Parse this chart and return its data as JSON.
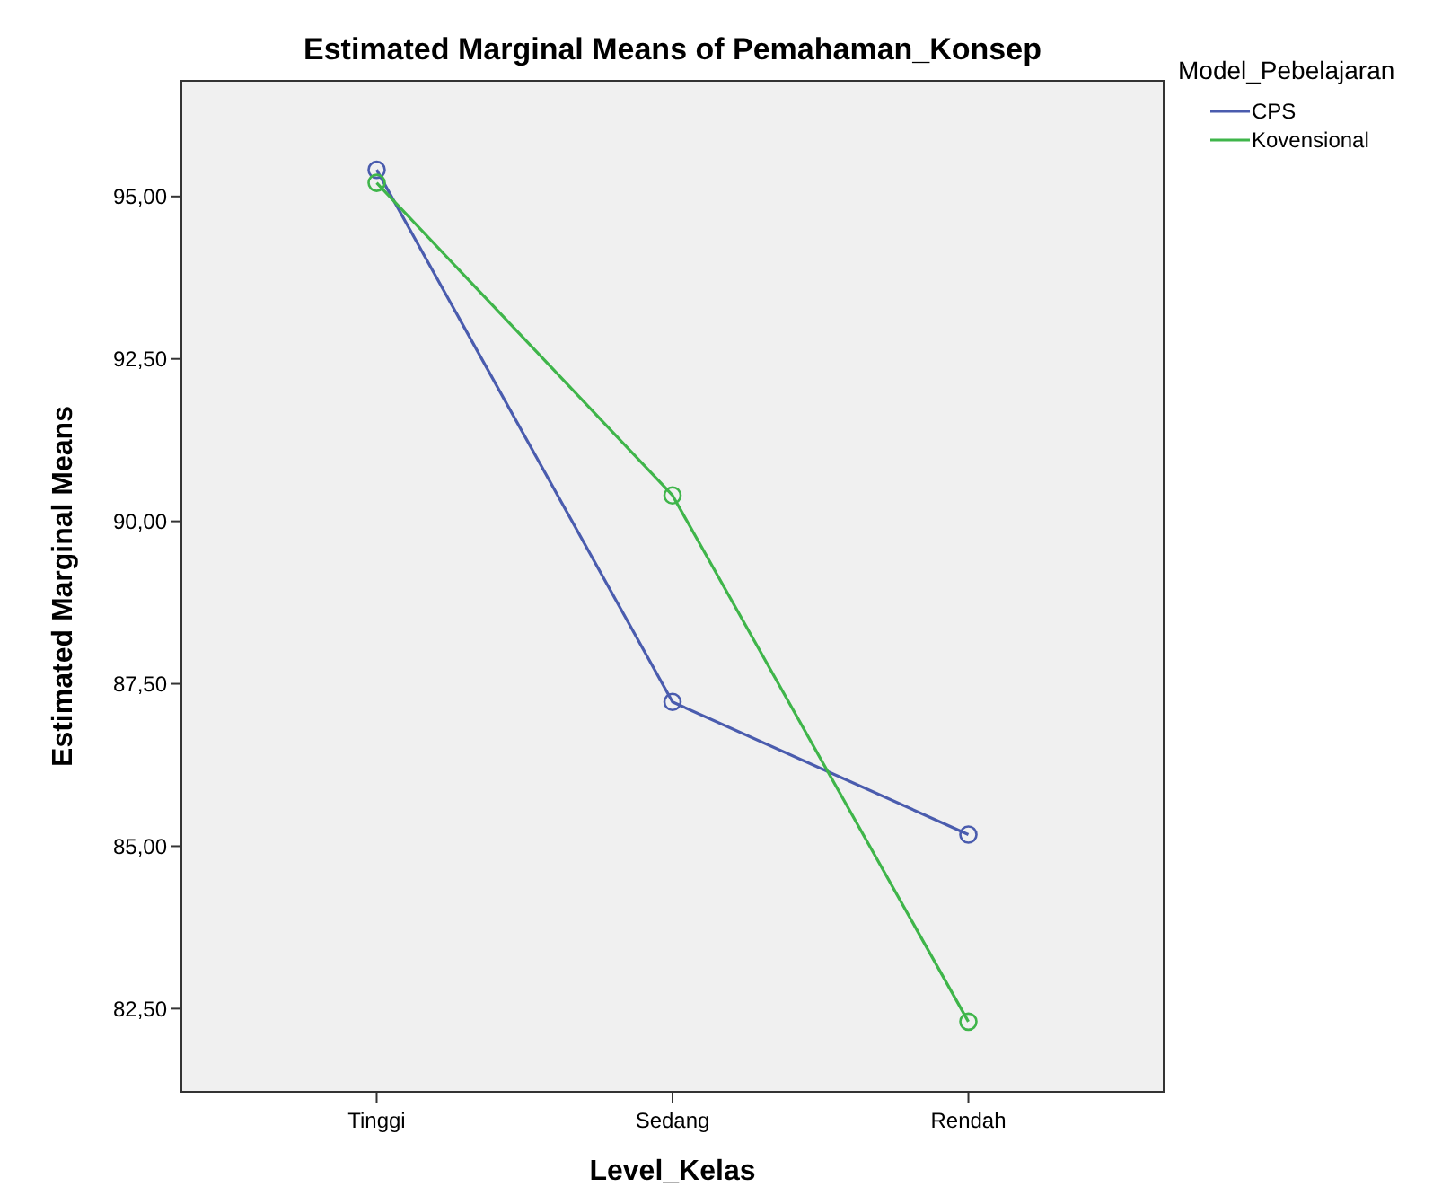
{
  "chart_data": {
    "type": "line",
    "title": "Estimated Marginal Means of Pemahaman_Konsep",
    "xlabel": "Level_Kelas",
    "ylabel": "Estimated Marginal Means",
    "legend_title": "Model_Pebelajaran",
    "categories": [
      "Tinggi",
      "Sedang",
      "Rendah"
    ],
    "series": [
      {
        "name": "CPS",
        "color": "#4a5cae",
        "values": [
          95.41,
          87.22,
          85.18
        ]
      },
      {
        "name": "Kovensional",
        "color": "#3fb54a",
        "values": [
          95.21,
          90.4,
          82.3
        ]
      }
    ],
    "ylim": [
      81.22,
      96.78
    ],
    "yticks": [
      {
        "value": 82.5,
        "label": "82,50"
      },
      {
        "value": 85,
        "label": "85,00"
      },
      {
        "value": 87.5,
        "label": "87,50"
      },
      {
        "value": 90,
        "label": "90,00"
      },
      {
        "value": 92.5,
        "label": "92,50"
      },
      {
        "value": 95,
        "label": "95,00"
      }
    ],
    "grid": false,
    "legend": "top right",
    "marker": "circle",
    "line_style": "solid"
  }
}
